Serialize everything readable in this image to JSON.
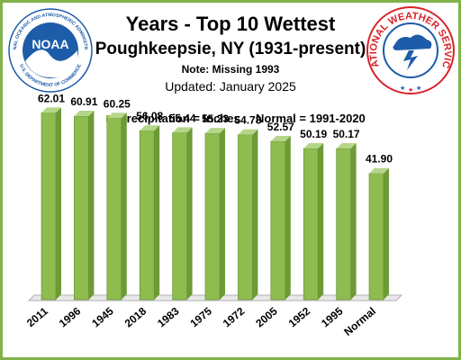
{
  "titles": {
    "main": "Years - Top 10 Wettest",
    "location": "Poughkeepsie,  NY (1931-present)",
    "note": "Note: Missing 1993",
    "updated": "Updated:  January 2025"
  },
  "legend": {
    "series": "Precipitation = Inches",
    "normal": "Normal = 1991-2020"
  },
  "logos": {
    "noaa_text": "NOAA",
    "noaa_ring_top": "NATIONAL OCEANIC AND ATMOSPHERIC ADMINISTRATION",
    "noaa_ring_bottom": "U.S. DEPARTMENT OF COMMERCE",
    "nws_ring": "NATIONAL WEATHER SERVICE"
  },
  "colors": {
    "bar": "#8fbc4f",
    "bar_top": "#b5d68a",
    "bar_side": "#6d9a35",
    "frame": "#7fb34a",
    "noaa_blue": "#1d5ca8",
    "nws_red": "#d8232a"
  },
  "chart_data": {
    "type": "bar",
    "categories": [
      "2011",
      "1996",
      "1945",
      "2018",
      "1983",
      "1975",
      "1972",
      "2005",
      "1952",
      "1995",
      "Normal"
    ],
    "values": [
      62.01,
      60.91,
      60.25,
      56.08,
      55.44,
      55.23,
      54.78,
      52.57,
      50.19,
      50.17,
      41.9
    ],
    "data_labels": [
      "62.01",
      "60.91",
      "60.25",
      "56.08",
      "55.44",
      "55.23",
      "54.78",
      "52.57",
      "50.19",
      "50.17",
      "41.90"
    ],
    "ylim": [
      0,
      66
    ],
    "grid": false,
    "legend_position": "top"
  }
}
